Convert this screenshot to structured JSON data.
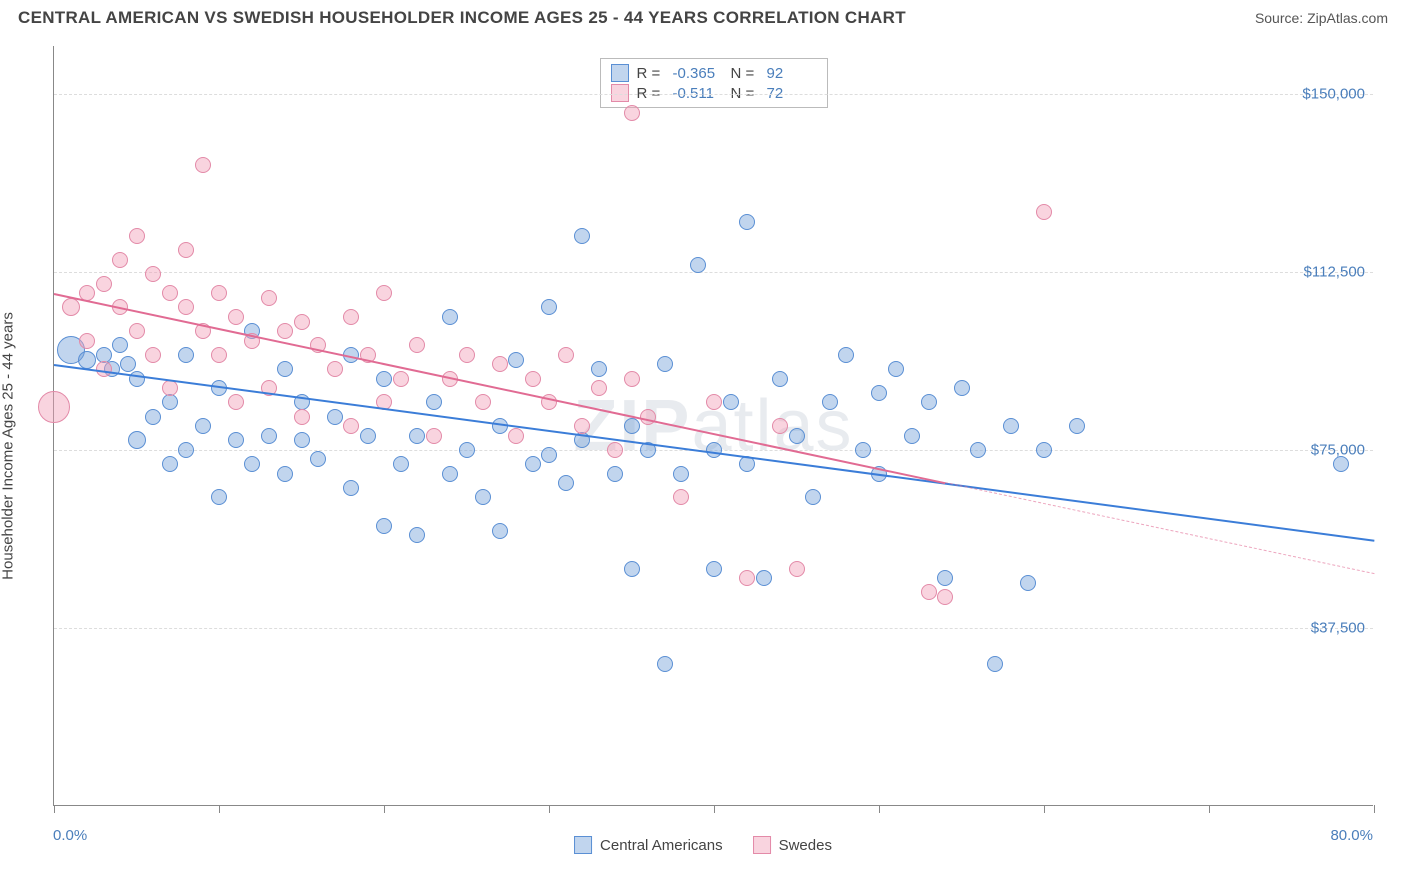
{
  "title": "CENTRAL AMERICAN VS SWEDISH HOUSEHOLDER INCOME AGES 25 - 44 YEARS CORRELATION CHART",
  "source": "Source: ZipAtlas.com",
  "y_axis_label": "Householder Income Ages 25 - 44 years",
  "watermark": {
    "bold": "ZIP",
    "light": "atlas"
  },
  "chart": {
    "type": "scatter",
    "xlim": [
      0,
      80
    ],
    "ylim": [
      0,
      160000
    ],
    "x_labels": {
      "min": "0.0%",
      "max": "80.0%"
    },
    "y_ticks": [
      {
        "value": 37500,
        "label": "$37,500"
      },
      {
        "value": 75000,
        "label": "$75,000"
      },
      {
        "value": 112500,
        "label": "$112,500"
      },
      {
        "value": 150000,
        "label": "$150,000"
      }
    ],
    "x_tick_positions": [
      0,
      10,
      20,
      30,
      40,
      50,
      60,
      70,
      80
    ],
    "grid_color": "#dddddd",
    "background_color": "#ffffff",
    "series": [
      {
        "name": "Central Americans",
        "fill": "rgba(118,162,217,0.45)",
        "stroke": "#5a8fd4",
        "line_color": "#3b7dd8",
        "r_value": "-0.365",
        "n_value": "92",
        "trend": {
          "x1": 0,
          "y1": 93000,
          "x2": 80,
          "y2": 56000,
          "dashed_from_x": null
        },
        "points": [
          {
            "x": 1,
            "y": 96000,
            "r": 14
          },
          {
            "x": 2,
            "y": 94000,
            "r": 9
          },
          {
            "x": 3,
            "y": 95000,
            "r": 8
          },
          {
            "x": 3.5,
            "y": 92000,
            "r": 8
          },
          {
            "x": 4,
            "y": 97000,
            "r": 8
          },
          {
            "x": 4.5,
            "y": 93000,
            "r": 8
          },
          {
            "x": 5,
            "y": 90000,
            "r": 8
          },
          {
            "x": 5,
            "y": 77000,
            "r": 9
          },
          {
            "x": 6,
            "y": 82000,
            "r": 8
          },
          {
            "x": 7,
            "y": 85000,
            "r": 8
          },
          {
            "x": 7,
            "y": 72000,
            "r": 8
          },
          {
            "x": 8,
            "y": 75000,
            "r": 8
          },
          {
            "x": 8,
            "y": 95000,
            "r": 8
          },
          {
            "x": 9,
            "y": 80000,
            "r": 8
          },
          {
            "x": 10,
            "y": 88000,
            "r": 8
          },
          {
            "x": 10,
            "y": 65000,
            "r": 8
          },
          {
            "x": 11,
            "y": 77000,
            "r": 8
          },
          {
            "x": 12,
            "y": 100000,
            "r": 8
          },
          {
            "x": 12,
            "y": 72000,
            "r": 8
          },
          {
            "x": 13,
            "y": 78000,
            "r": 8
          },
          {
            "x": 14,
            "y": 92000,
            "r": 8
          },
          {
            "x": 14,
            "y": 70000,
            "r": 8
          },
          {
            "x": 15,
            "y": 85000,
            "r": 8
          },
          {
            "x": 15,
            "y": 77000,
            "r": 8
          },
          {
            "x": 16,
            "y": 73000,
            "r": 8
          },
          {
            "x": 17,
            "y": 82000,
            "r": 8
          },
          {
            "x": 18,
            "y": 95000,
            "r": 8
          },
          {
            "x": 18,
            "y": 67000,
            "r": 8
          },
          {
            "x": 19,
            "y": 78000,
            "r": 8
          },
          {
            "x": 20,
            "y": 90000,
            "r": 8
          },
          {
            "x": 20,
            "y": 59000,
            "r": 8
          },
          {
            "x": 21,
            "y": 72000,
            "r": 8
          },
          {
            "x": 22,
            "y": 78000,
            "r": 8
          },
          {
            "x": 22,
            "y": 57000,
            "r": 8
          },
          {
            "x": 23,
            "y": 85000,
            "r": 8
          },
          {
            "x": 24,
            "y": 103000,
            "r": 8
          },
          {
            "x": 24,
            "y": 70000,
            "r": 8
          },
          {
            "x": 25,
            "y": 75000,
            "r": 8
          },
          {
            "x": 26,
            "y": 65000,
            "r": 8
          },
          {
            "x": 27,
            "y": 80000,
            "r": 8
          },
          {
            "x": 27,
            "y": 58000,
            "r": 8
          },
          {
            "x": 28,
            "y": 94000,
            "r": 8
          },
          {
            "x": 29,
            "y": 72000,
            "r": 8
          },
          {
            "x": 30,
            "y": 105000,
            "r": 8
          },
          {
            "x": 30,
            "y": 74000,
            "r": 8
          },
          {
            "x": 31,
            "y": 68000,
            "r": 8
          },
          {
            "x": 32,
            "y": 77000,
            "r": 8
          },
          {
            "x": 32,
            "y": 120000,
            "r": 8
          },
          {
            "x": 33,
            "y": 92000,
            "r": 8
          },
          {
            "x": 34,
            "y": 70000,
            "r": 8
          },
          {
            "x": 35,
            "y": 80000,
            "r": 8
          },
          {
            "x": 35,
            "y": 50000,
            "r": 8
          },
          {
            "x": 36,
            "y": 75000,
            "r": 8
          },
          {
            "x": 37,
            "y": 30000,
            "r": 8
          },
          {
            "x": 37,
            "y": 93000,
            "r": 8
          },
          {
            "x": 38,
            "y": 70000,
            "r": 8
          },
          {
            "x": 39,
            "y": 114000,
            "r": 8
          },
          {
            "x": 40,
            "y": 75000,
            "r": 8
          },
          {
            "x": 40,
            "y": 50000,
            "r": 8
          },
          {
            "x": 41,
            "y": 85000,
            "r": 8
          },
          {
            "x": 42,
            "y": 123000,
            "r": 8
          },
          {
            "x": 42,
            "y": 72000,
            "r": 8
          },
          {
            "x": 43,
            "y": 48000,
            "r": 8
          },
          {
            "x": 44,
            "y": 90000,
            "r": 8
          },
          {
            "x": 45,
            "y": 78000,
            "r": 8
          },
          {
            "x": 46,
            "y": 65000,
            "r": 8
          },
          {
            "x": 47,
            "y": 85000,
            "r": 8
          },
          {
            "x": 48,
            "y": 95000,
            "r": 8
          },
          {
            "x": 49,
            "y": 75000,
            "r": 8
          },
          {
            "x": 50,
            "y": 87000,
            "r": 8
          },
          {
            "x": 50,
            "y": 70000,
            "r": 8
          },
          {
            "x": 51,
            "y": 92000,
            "r": 8
          },
          {
            "x": 52,
            "y": 78000,
            "r": 8
          },
          {
            "x": 53,
            "y": 85000,
            "r": 8
          },
          {
            "x": 54,
            "y": 48000,
            "r": 8
          },
          {
            "x": 55,
            "y": 88000,
            "r": 8
          },
          {
            "x": 56,
            "y": 75000,
            "r": 8
          },
          {
            "x": 57,
            "y": 30000,
            "r": 8
          },
          {
            "x": 58,
            "y": 80000,
            "r": 8
          },
          {
            "x": 59,
            "y": 47000,
            "r": 8
          },
          {
            "x": 60,
            "y": 75000,
            "r": 8
          },
          {
            "x": 62,
            "y": 80000,
            "r": 8
          },
          {
            "x": 78,
            "y": 72000,
            "r": 8
          }
        ]
      },
      {
        "name": "Swedes",
        "fill": "rgba(242,160,185,0.45)",
        "stroke": "#e38aa8",
        "line_color": "#e16b93",
        "r_value": "-0.511",
        "n_value": "72",
        "trend": {
          "x1": 0,
          "y1": 108000,
          "x2": 80,
          "y2": 49000,
          "dashed_from_x": 54
        },
        "points": [
          {
            "x": 0,
            "y": 84000,
            "r": 16
          },
          {
            "x": 1,
            "y": 105000,
            "r": 9
          },
          {
            "x": 2,
            "y": 108000,
            "r": 8
          },
          {
            "x": 2,
            "y": 98000,
            "r": 8
          },
          {
            "x": 3,
            "y": 110000,
            "r": 8
          },
          {
            "x": 3,
            "y": 92000,
            "r": 8
          },
          {
            "x": 4,
            "y": 115000,
            "r": 8
          },
          {
            "x": 4,
            "y": 105000,
            "r": 8
          },
          {
            "x": 5,
            "y": 120000,
            "r": 8
          },
          {
            "x": 5,
            "y": 100000,
            "r": 8
          },
          {
            "x": 6,
            "y": 112000,
            "r": 8
          },
          {
            "x": 6,
            "y": 95000,
            "r": 8
          },
          {
            "x": 7,
            "y": 108000,
            "r": 8
          },
          {
            "x": 7,
            "y": 88000,
            "r": 8
          },
          {
            "x": 8,
            "y": 105000,
            "r": 8
          },
          {
            "x": 8,
            "y": 117000,
            "r": 8
          },
          {
            "x": 9,
            "y": 100000,
            "r": 8
          },
          {
            "x": 9,
            "y": 135000,
            "r": 8
          },
          {
            "x": 10,
            "y": 95000,
            "r": 8
          },
          {
            "x": 10,
            "y": 108000,
            "r": 8
          },
          {
            "x": 11,
            "y": 103000,
            "r": 8
          },
          {
            "x": 11,
            "y": 85000,
            "r": 8
          },
          {
            "x": 12,
            "y": 98000,
            "r": 8
          },
          {
            "x": 13,
            "y": 107000,
            "r": 8
          },
          {
            "x": 13,
            "y": 88000,
            "r": 8
          },
          {
            "x": 14,
            "y": 100000,
            "r": 8
          },
          {
            "x": 15,
            "y": 102000,
            "r": 8
          },
          {
            "x": 15,
            "y": 82000,
            "r": 8
          },
          {
            "x": 16,
            "y": 97000,
            "r": 8
          },
          {
            "x": 17,
            "y": 92000,
            "r": 8
          },
          {
            "x": 18,
            "y": 103000,
            "r": 8
          },
          {
            "x": 18,
            "y": 80000,
            "r": 8
          },
          {
            "x": 19,
            "y": 95000,
            "r": 8
          },
          {
            "x": 20,
            "y": 108000,
            "r": 8
          },
          {
            "x": 20,
            "y": 85000,
            "r": 8
          },
          {
            "x": 21,
            "y": 90000,
            "r": 8
          },
          {
            "x": 22,
            "y": 97000,
            "r": 8
          },
          {
            "x": 23,
            "y": 78000,
            "r": 8
          },
          {
            "x": 24,
            "y": 90000,
            "r": 8
          },
          {
            "x": 25,
            "y": 95000,
            "r": 8
          },
          {
            "x": 26,
            "y": 85000,
            "r": 8
          },
          {
            "x": 27,
            "y": 93000,
            "r": 8
          },
          {
            "x": 28,
            "y": 78000,
            "r": 8
          },
          {
            "x": 29,
            "y": 90000,
            "r": 8
          },
          {
            "x": 30,
            "y": 85000,
            "r": 8
          },
          {
            "x": 31,
            "y": 95000,
            "r": 8
          },
          {
            "x": 32,
            "y": 80000,
            "r": 8
          },
          {
            "x": 33,
            "y": 88000,
            "r": 8
          },
          {
            "x": 34,
            "y": 75000,
            "r": 8
          },
          {
            "x": 35,
            "y": 146000,
            "r": 8
          },
          {
            "x": 35,
            "y": 90000,
            "r": 8
          },
          {
            "x": 36,
            "y": 82000,
            "r": 8
          },
          {
            "x": 38,
            "y": 65000,
            "r": 8
          },
          {
            "x": 40,
            "y": 85000,
            "r": 8
          },
          {
            "x": 42,
            "y": 48000,
            "r": 8
          },
          {
            "x": 44,
            "y": 80000,
            "r": 8
          },
          {
            "x": 45,
            "y": 50000,
            "r": 8
          },
          {
            "x": 53,
            "y": 45000,
            "r": 8
          },
          {
            "x": 54,
            "y": 44000,
            "r": 8
          },
          {
            "x": 60,
            "y": 125000,
            "r": 8
          }
        ]
      }
    ]
  },
  "legend": {
    "items": [
      {
        "label": "Central Americans"
      },
      {
        "label": "Swedes"
      }
    ]
  }
}
